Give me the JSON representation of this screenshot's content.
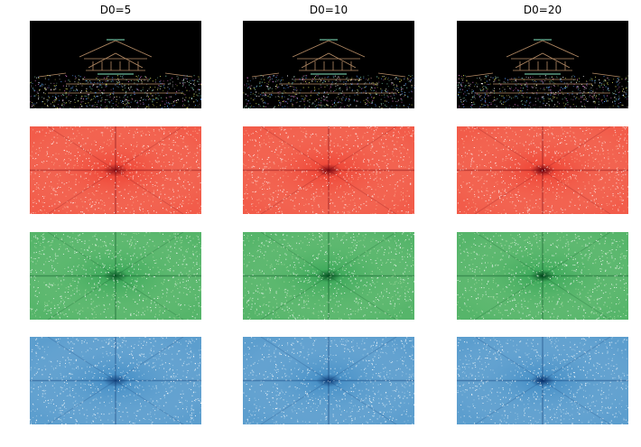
{
  "columns": [
    {
      "title": "D0=5"
    },
    {
      "title": "D0=10"
    },
    {
      "title": "D0=20"
    }
  ],
  "rows": [
    {
      "name": "filtered-image",
      "colors": {
        "base": "#000000",
        "noise": [
          "#7fd0b0",
          "#e0e060",
          "#d070c0",
          "#60a0ff",
          "#ffffff"
        ]
      }
    },
    {
      "name": "red-spectrum",
      "colors": {
        "light": "#fca58a",
        "mid": "#ef4a3a",
        "dark": "#67000d"
      }
    },
    {
      "name": "green-spectrum",
      "colors": {
        "light": "#a8dca0",
        "mid": "#41ab5d",
        "dark": "#00441b"
      }
    },
    {
      "name": "blue-spectrum",
      "colors": {
        "light": "#a6cde6",
        "mid": "#4a92c8",
        "dark": "#08306b"
      }
    }
  ]
}
